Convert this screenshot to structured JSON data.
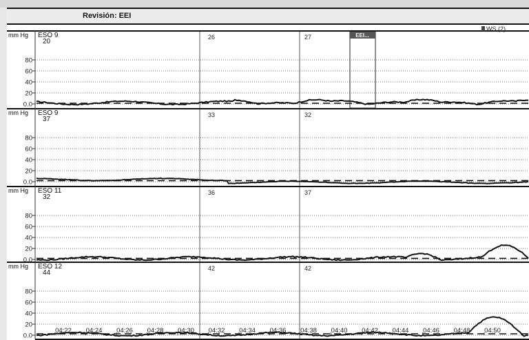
{
  "window": {
    "title": "Revisión: EEI"
  },
  "y_axis": {
    "unit": "mm Hg",
    "ticks": [
      "80",
      "60",
      "40",
      "20",
      "0.0"
    ]
  },
  "marker": {
    "label": "EEI..."
  },
  "tag": {
    "label": "WS (2)"
  },
  "x_axis": {
    "ticks": [
      "04:22",
      "04:24",
      "04:26",
      "04:28",
      "04:30",
      "04:32",
      "04:34",
      "04:36",
      "04:38",
      "04:40",
      "04:42",
      "04:44",
      "04:46",
      "04:48",
      "04:50"
    ]
  },
  "panels": [
    {
      "channel": "ESO 9",
      "value": "20",
      "segment_values": [
        "26",
        "27"
      ]
    },
    {
      "channel": "ESO 9",
      "value": "37",
      "segment_values": [
        "33",
        "32"
      ]
    },
    {
      "channel": "ESO 11",
      "value": "32",
      "segment_values": [
        "36",
        "37"
      ]
    },
    {
      "channel": "ESO 12",
      "value": "44",
      "segment_values": [
        "42",
        "42"
      ]
    }
  ],
  "colors": {
    "background": "#ffffff",
    "trace": "#111111",
    "grid": "#444444",
    "header": "#ececec",
    "marker": "#555555"
  }
}
